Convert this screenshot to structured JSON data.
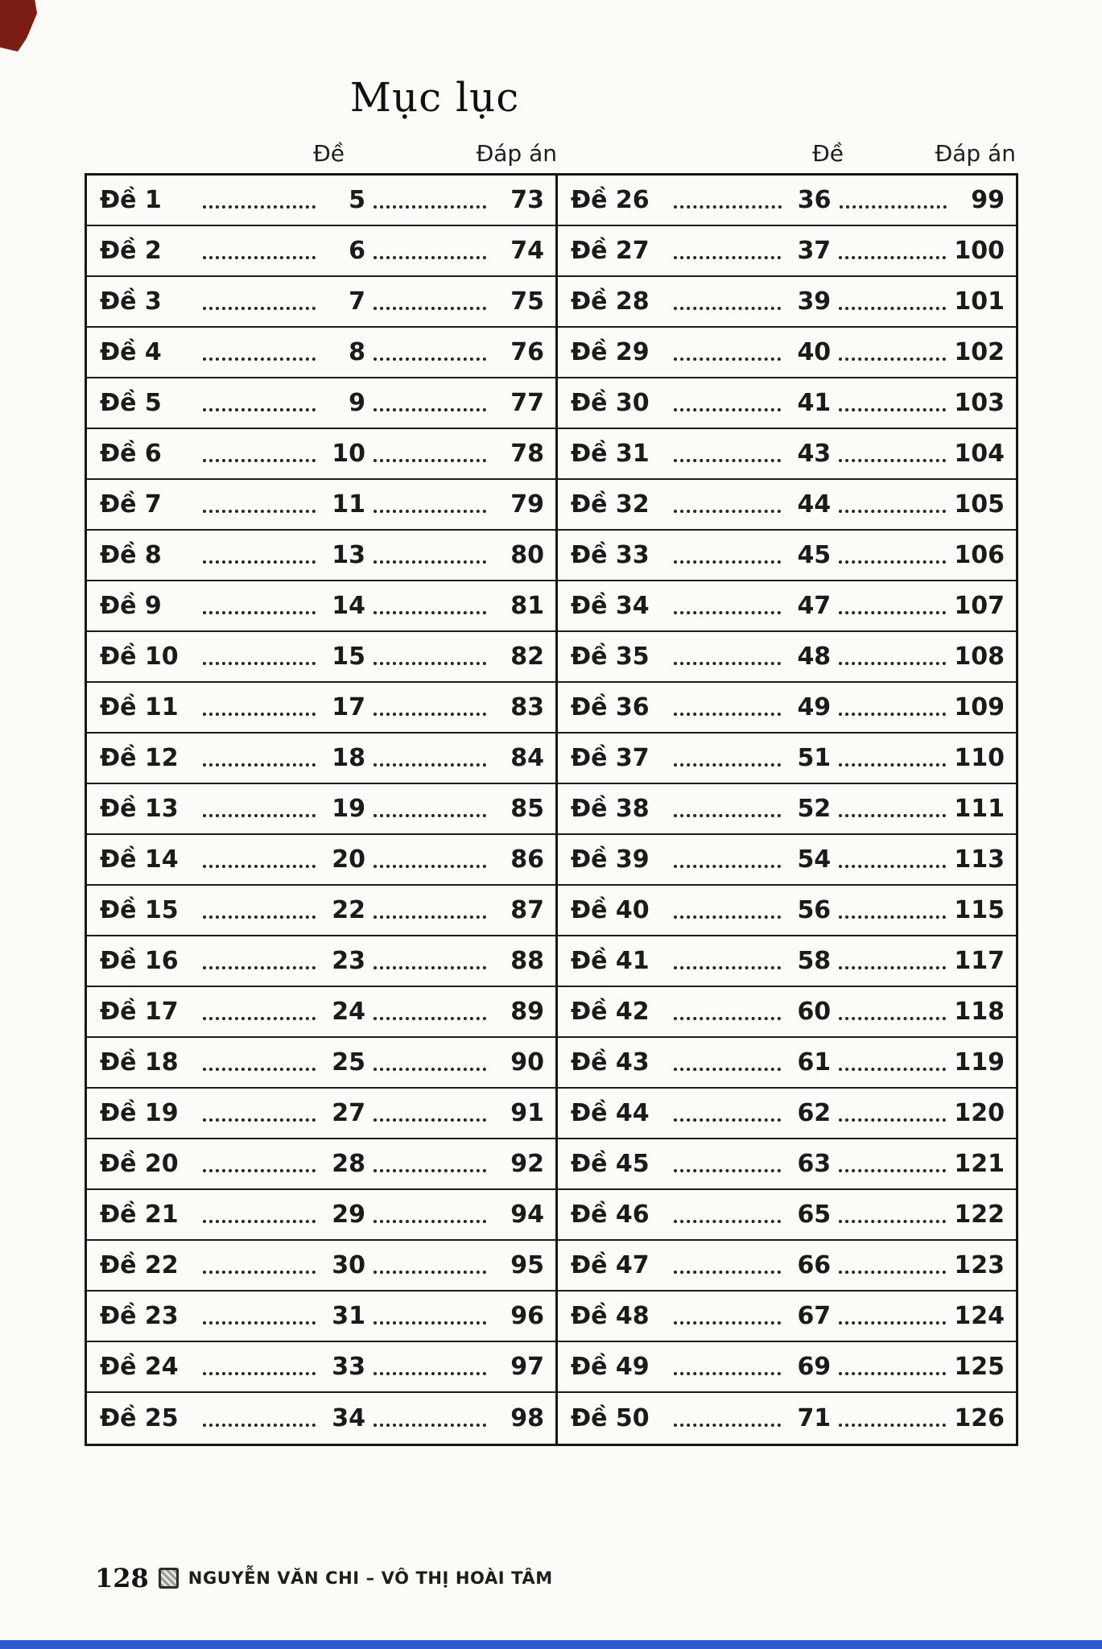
{
  "page": {
    "title": "Mục lục",
    "column_headers": [
      "Đề",
      "Đáp án",
      "Đề",
      "Đáp án"
    ],
    "footer": {
      "page_number": "128",
      "authors": "NGUYỄN VĂN CHI – VÔ THỊ HOÀI TÂM"
    }
  },
  "toc": {
    "left": [
      {
        "label": "Đề 1",
        "page": "5",
        "answer": "73"
      },
      {
        "label": "Đề 2",
        "page": "6",
        "answer": "74"
      },
      {
        "label": "Đề 3",
        "page": "7",
        "answer": "75"
      },
      {
        "label": "Đề 4",
        "page": "8",
        "answer": "76"
      },
      {
        "label": "Đề 5",
        "page": "9",
        "answer": "77"
      },
      {
        "label": "Đề 6",
        "page": "10",
        "answer": "78"
      },
      {
        "label": "Đề 7",
        "page": "11",
        "answer": "79"
      },
      {
        "label": "Đề 8",
        "page": "13",
        "answer": "80"
      },
      {
        "label": "Đề 9",
        "page": "14",
        "answer": "81"
      },
      {
        "label": "Đề 10",
        "page": "15",
        "answer": "82"
      },
      {
        "label": "Đề 11",
        "page": "17",
        "answer": "83"
      },
      {
        "label": "Đề 12",
        "page": "18",
        "answer": "84"
      },
      {
        "label": "Đề 13",
        "page": "19",
        "answer": "85"
      },
      {
        "label": "Đề 14",
        "page": "20",
        "answer": "86"
      },
      {
        "label": "Đề 15",
        "page": "22",
        "answer": "87"
      },
      {
        "label": "Đề 16",
        "page": "23",
        "answer": "88"
      },
      {
        "label": "Đề 17",
        "page": "24",
        "answer": "89"
      },
      {
        "label": "Đề 18",
        "page": "25",
        "answer": "90"
      },
      {
        "label": "Đề 19",
        "page": "27",
        "answer": "91"
      },
      {
        "label": "Đề 20",
        "page": "28",
        "answer": "92"
      },
      {
        "label": "Đề 21",
        "page": "29",
        "answer": "94"
      },
      {
        "label": "Đề 22",
        "page": "30",
        "answer": "95"
      },
      {
        "label": "Đề 23",
        "page": "31",
        "answer": "96"
      },
      {
        "label": "Đề 24",
        "page": "33",
        "answer": "97"
      },
      {
        "label": "Đề 25",
        "page": "34",
        "answer": "98"
      }
    ],
    "right": [
      {
        "label": "Đề 26",
        "page": "36",
        "answer": "99"
      },
      {
        "label": "Đề 27",
        "page": "37",
        "answer": "100"
      },
      {
        "label": "Đề 28",
        "page": "39",
        "answer": "101"
      },
      {
        "label": "Đề 29",
        "page": "40",
        "answer": "102"
      },
      {
        "label": "Đề 30",
        "page": "41",
        "answer": "103"
      },
      {
        "label": "Đề 31",
        "page": "43",
        "answer": "104"
      },
      {
        "label": "Đề 32",
        "page": "44",
        "answer": "105"
      },
      {
        "label": "Đề 33",
        "page": "45",
        "answer": "106"
      },
      {
        "label": "Đề 34",
        "page": "47",
        "answer": "107"
      },
      {
        "label": "Đề 35",
        "page": "48",
        "answer": "108"
      },
      {
        "label": "Đề 36",
        "page": "49",
        "answer": "109"
      },
      {
        "label": "Đề 37",
        "page": "51",
        "answer": "110"
      },
      {
        "label": "Đề 38",
        "page": "52",
        "answer": "111"
      },
      {
        "label": "Đề 39",
        "page": "54",
        "answer": "113"
      },
      {
        "label": "Đề 40",
        "page": "56",
        "answer": "115"
      },
      {
        "label": "Đề 41",
        "page": "58",
        "answer": "117"
      },
      {
        "label": "Đề 42",
        "page": "60",
        "answer": "118"
      },
      {
        "label": "Đề 43",
        "page": "61",
        "answer": "119"
      },
      {
        "label": "Đề 44",
        "page": "62",
        "answer": "120"
      },
      {
        "label": "Đề 45",
        "page": "63",
        "answer": "121"
      },
      {
        "label": "Đề 46",
        "page": "65",
        "answer": "122"
      },
      {
        "label": "Đề 47",
        "page": "66",
        "answer": "123"
      },
      {
        "label": "Đề 48",
        "page": "67",
        "answer": "124"
      },
      {
        "label": "Đề 49",
        "page": "69",
        "answer": "125"
      },
      {
        "label": "Đề 50",
        "page": "71",
        "answer": "126"
      }
    ]
  },
  "colors": {
    "bottom_bar": "#2f5bd0",
    "corner_mark": "#7b1d12"
  }
}
